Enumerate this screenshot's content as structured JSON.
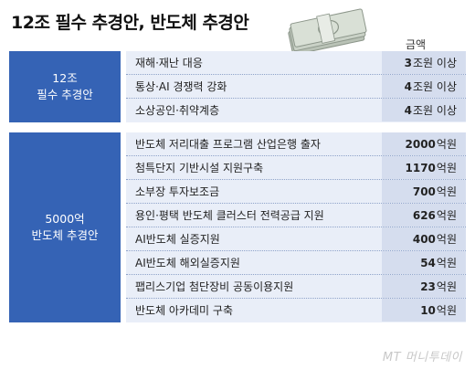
{
  "title": "12조 필수 추경안, 반도체 추경안",
  "amount_header": "금액",
  "groups": [
    {
      "label_line1": "12조",
      "label_line2": "필수 추경안",
      "rows": [
        {
          "item": "재해·재난 대응",
          "num": "3",
          "unit": "조원 이상"
        },
        {
          "item": "통상·AI 경쟁력 강화",
          "num": "4",
          "unit": "조원 이상"
        },
        {
          "item": "소상공인·취약계층",
          "num": "4",
          "unit": "조원 이상"
        }
      ]
    },
    {
      "label_line1": "5000억",
      "label_line2": "반도체 추경안",
      "rows": [
        {
          "item": "반도체 저리대출 프로그램 산업은행 출자",
          "num": "2000",
          "unit": "억원"
        },
        {
          "item": "첨특단지 기반시설 지원구축",
          "num": "1170",
          "unit": "억원"
        },
        {
          "item": "소부장 투자보조금",
          "num": "700",
          "unit": "억원"
        },
        {
          "item": "용인·평택 반도체 클러스터 전력공급 지원",
          "num": "626",
          "unit": "억원"
        },
        {
          "item": "AI반도체 실증지원",
          "num": "400",
          "unit": "억원"
        },
        {
          "item": "AI반도체 해외실증지원",
          "num": "54",
          "unit": "억원"
        },
        {
          "item": "팹리스기업 첨단장비 공동이용지원",
          "num": "23",
          "unit": "억원"
        },
        {
          "item": "반도체 아카데미 구축",
          "num": "10",
          "unit": "억원"
        }
      ]
    }
  ],
  "watermark": "MT 머니투데이",
  "colors": {
    "label_bg": "#3563b5",
    "row_bg": "#e9eef8",
    "value_bg": "#d5ddee"
  },
  "icons": {
    "money": "money-stack-icon"
  }
}
